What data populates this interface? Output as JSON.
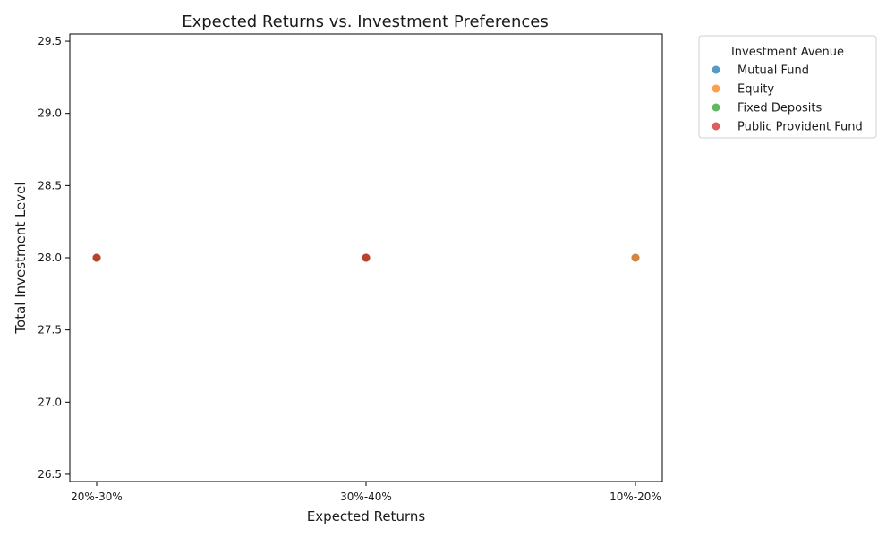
{
  "chart_data": {
    "type": "scatter",
    "title": "Expected Returns vs. Investment Preferences",
    "xlabel": "Expected Returns",
    "ylabel": "Total Investment Level",
    "categories": [
      "20%-30%",
      "30%-40%",
      "10%-20%"
    ],
    "ylim": [
      26.45,
      29.55
    ],
    "yticks": [
      "26.5",
      "27.0",
      "27.5",
      "28.0",
      "28.5",
      "29.0",
      "29.5"
    ],
    "grid": false,
    "legend": {
      "title": "Investment Avenue",
      "placement": "outside-top-right"
    },
    "series": [
      {
        "name": "Mutual Fund",
        "color": "#1f77b4",
        "points": [
          {
            "x": "20%-30%",
            "y": 28
          },
          {
            "x": "30%-40%",
            "y": 28
          },
          {
            "x": "10%-20%",
            "y": 28
          }
        ]
      },
      {
        "name": "Equity",
        "color": "#ff7f0e",
        "points": [
          {
            "x": "20%-30%",
            "y": 28
          },
          {
            "x": "30%-40%",
            "y": 28
          },
          {
            "x": "10%-20%",
            "y": 28
          }
        ]
      },
      {
        "name": "Fixed Deposits",
        "color": "#2ca02c",
        "points": [
          {
            "x": "20%-30%",
            "y": 28
          },
          {
            "x": "30%-40%",
            "y": 28
          }
        ]
      },
      {
        "name": "Public Provident Fund",
        "color": "#d62728",
        "points": [
          {
            "x": "20%-30%",
            "y": 28
          },
          {
            "x": "30%-40%",
            "y": 28
          }
        ]
      }
    ]
  }
}
